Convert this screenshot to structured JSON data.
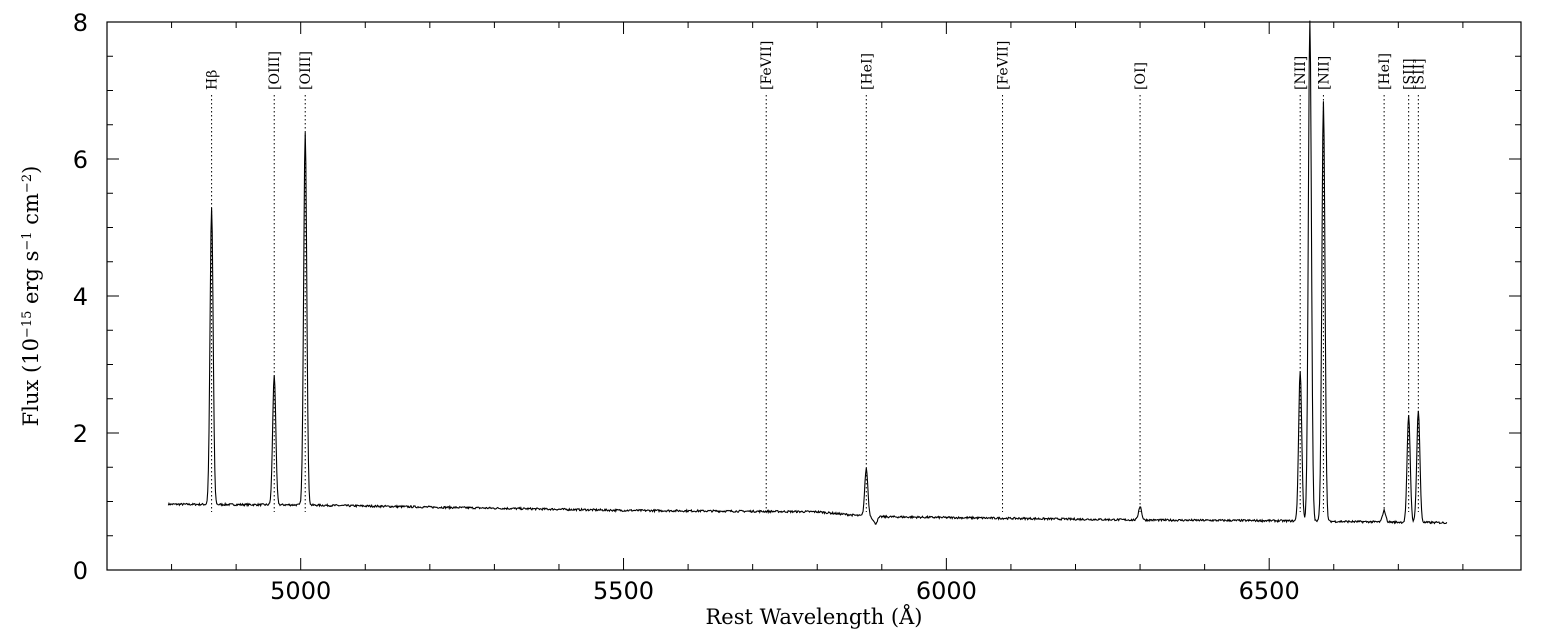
{
  "chart_data": {
    "type": "line",
    "title": "",
    "xlabel": "Rest Wavelength (Å)",
    "ylabel_parts": [
      "Flux (10",
      "−15",
      " erg s",
      "−1",
      " cm",
      "−2",
      ")"
    ],
    "xlim": [
      4700,
      6890
    ],
    "ylim": [
      0,
      8
    ],
    "xticks": [
      5000,
      5500,
      6000,
      6500
    ],
    "xtick_labels": [
      "5000",
      "5500",
      "6000",
      "6500"
    ],
    "yticks": [
      0,
      2,
      4,
      6,
      8
    ],
    "ytick_labels": [
      "0",
      "2",
      "4",
      "6",
      "8"
    ],
    "grid": false,
    "legend": "none",
    "series": [
      {
        "x_range": [
          4795,
          6775
        ],
        "continuum": [
          [
            4795,
            0.96
          ],
          [
            5000,
            0.95
          ],
          [
            5500,
            0.87
          ],
          [
            5800,
            0.85
          ],
          [
            5880,
            0.78
          ],
          [
            6300,
            0.73
          ],
          [
            6500,
            0.72
          ],
          [
            6775,
            0.69
          ]
        ],
        "emission_lines": [
          {
            "x": 4862,
            "peak": 5.28
          },
          {
            "x": 4959,
            "peak": 2.85
          },
          {
            "x": 5007,
            "peak": 6.4
          },
          {
            "x": 5876,
            "peak": 1.48
          },
          {
            "x": 6300,
            "peak": 0.93
          },
          {
            "x": 6548,
            "peak": 2.9
          },
          {
            "x": 6563,
            "peak": 8.0
          },
          {
            "x": 6584,
            "peak": 6.85
          },
          {
            "x": 6678,
            "peak": 0.87
          },
          {
            "x": 6716,
            "peak": 2.25
          },
          {
            "x": 6731,
            "peak": 2.33
          }
        ],
        "absorption": [
          {
            "x": 5890,
            "depth": 0.1
          }
        ]
      }
    ],
    "annotations": [
      {
        "x": 4862,
        "label": "Hβ"
      },
      {
        "x": 4959,
        "label": "[OIII]"
      },
      {
        "x": 5007,
        "label": "[OIII]"
      },
      {
        "x": 5721,
        "label": "[FeVII]"
      },
      {
        "x": 5876,
        "label": "[HeI]"
      },
      {
        "x": 6087,
        "label": "[FeVII]"
      },
      {
        "x": 6300,
        "label": "[OI]"
      },
      {
        "x": 6548,
        "label": "[NII]"
      },
      {
        "x": 6584,
        "label": "[NII]"
      },
      {
        "x": 6678,
        "label": "[HeI]"
      },
      {
        "x": 6716,
        "label": "[SII]"
      },
      {
        "x": 6731,
        "label": "[SII]"
      }
    ]
  }
}
